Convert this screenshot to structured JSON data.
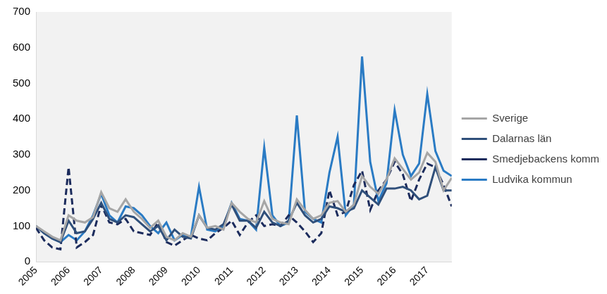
{
  "chart_data": {
    "type": "line",
    "categories": [
      "2005",
      null,
      null,
      null,
      "2006",
      null,
      null,
      null,
      "2007",
      null,
      null,
      null,
      "2008",
      null,
      null,
      null,
      "2009",
      null,
      null,
      null,
      "2010",
      null,
      null,
      null,
      "2011",
      null,
      null,
      null,
      "2012",
      null,
      null,
      null,
      "2013",
      null,
      null,
      null,
      "2014",
      null,
      null,
      null,
      "2015",
      null,
      null,
      null,
      "2016",
      null,
      null,
      null,
      "2017",
      null,
      null,
      null
    ],
    "series": [
      {
        "name": "Sverige",
        "color": "#a6a6a6",
        "line_style": "solid",
        "values": [
          100,
          85,
          70,
          60,
          130,
          115,
          110,
          125,
          195,
          150,
          140,
          175,
          140,
          120,
          95,
          115,
          70,
          60,
          80,
          70,
          130,
          95,
          100,
          90,
          165,
          140,
          120,
          110,
          170,
          120,
          110,
          105,
          175,
          145,
          120,
          130,
          165,
          170,
          140,
          160,
          240,
          210,
          190,
          230,
          290,
          260,
          230,
          250,
          305,
          280,
          200,
          235
        ]
      },
      {
        "name": "Dalarnas län",
        "color": "#2f4f7a",
        "line_style": "solid",
        "values": [
          100,
          80,
          65,
          55,
          115,
          80,
          85,
          120,
          165,
          120,
          110,
          130,
          125,
          105,
          85,
          100,
          60,
          90,
          70,
          65,
          130,
          95,
          90,
          105,
          160,
          115,
          115,
          95,
          140,
          110,
          100,
          115,
          165,
          130,
          110,
          120,
          155,
          150,
          140,
          150,
          200,
          180,
          160,
          205,
          205,
          210,
          200,
          175,
          185,
          265,
          200,
          200
        ]
      },
      {
        "name": "Smedjebackens kommun",
        "color": "#1b2b5c",
        "line_style": "dashed",
        "values": [
          95,
          60,
          40,
          35,
          265,
          40,
          55,
          75,
          160,
          110,
          105,
          120,
          85,
          80,
          75,
          110,
          55,
          45,
          60,
          75,
          65,
          60,
          80,
          95,
          115,
          75,
          110,
          130,
          100,
          105,
          100,
          130,
          110,
          85,
          55,
          80,
          200,
          130,
          140,
          215,
          255,
          145,
          200,
          230,
          280,
          245,
          170,
          230,
          275,
          265,
          215,
          155
        ]
      },
      {
        "name": "Ludvika kommun",
        "color": "#2a7bc4",
        "line_style": "solid",
        "values": [
          100,
          80,
          65,
          55,
          75,
          60,
          85,
          130,
          190,
          130,
          110,
          155,
          150,
          130,
          100,
          80,
          110,
          60,
          75,
          70,
          210,
          90,
          85,
          100,
          165,
          120,
          115,
          90,
          320,
          130,
          100,
          110,
          410,
          140,
          120,
          110,
          250,
          350,
          130,
          160,
          575,
          280,
          170,
          220,
          425,
          300,
          240,
          275,
          470,
          310,
          255,
          240
        ]
      }
    ],
    "ylim": [
      0,
      700
    ],
    "yticks": [
      0,
      100,
      200,
      300,
      400,
      500,
      600,
      700
    ],
    "grid": false,
    "legend": "right"
  }
}
